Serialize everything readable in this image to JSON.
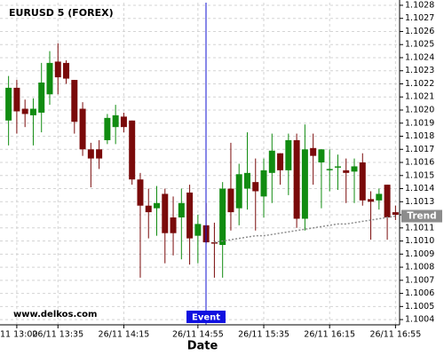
{
  "chart_data": {
    "type": "candlestick",
    "title": "EURUSD 5 (FOREX)",
    "x_label": "Date",
    "watermark": "www.delkos.com",
    "event_label": "Event",
    "categories": [
      null,
      "11 13:00",
      null,
      null,
      null,
      null,
      "26/11 13:35",
      null,
      null,
      null,
      null,
      null,
      null,
      null,
      "26/11 14:15",
      null,
      null,
      null,
      null,
      null,
      null,
      null,
      null,
      "26/11 14:55",
      null,
      null,
      null,
      null,
      null,
      null,
      null,
      "26/11 15:35",
      null,
      null,
      null,
      null,
      null,
      null,
      null,
      "26/11 16:15",
      null,
      null,
      null,
      null,
      null,
      null,
      null,
      "26/11 16:55"
    ],
    "open": [
      1.10192,
      1.10217,
      1.10201,
      1.10196,
      1.10198,
      1.10212,
      1.10237,
      1.10236,
      1.10223,
      1.10201,
      1.1017,
      1.1017,
      1.10177,
      1.10187,
      1.10195,
      1.10192,
      1.10147,
      1.10127,
      1.10125,
      1.10136,
      1.10118,
      1.10118,
      1.10137,
      1.10104,
      1.10112,
      1.10099,
      1.10097,
      1.1014,
      1.10125,
      1.1014,
      1.10145,
      1.10134,
      1.10152,
      1.10167,
      1.10154,
      1.10177,
      1.10117,
      1.10171,
      1.1016,
      1.10154,
      1.10156,
      1.10154,
      1.10153,
      1.1016,
      1.10132,
      1.10131,
      1.10143,
      1.10122
    ],
    "high": [
      1.10226,
      1.10223,
      1.10208,
      1.10209,
      1.10236,
      1.10245,
      1.10251,
      1.10238,
      1.10223,
      1.10206,
      1.10175,
      1.10177,
      1.10197,
      1.10204,
      1.10198,
      1.10192,
      1.10152,
      1.1014,
      1.10142,
      1.1014,
      1.10134,
      1.1014,
      1.10143,
      1.1012,
      1.10129,
      1.10114,
      1.10145,
      1.10175,
      1.10159,
      1.10183,
      1.10163,
      1.10163,
      1.10182,
      1.10167,
      1.10182,
      1.10182,
      1.10189,
      1.10182,
      1.1017,
      1.1017,
      1.10166,
      1.10163,
      1.10163,
      1.10167,
      1.10138,
      1.1014,
      1.10143,
      1.10127
    ],
    "low": [
      1.10173,
      1.10182,
      1.10187,
      1.10173,
      1.10183,
      1.10204,
      1.10212,
      1.1022,
      1.10182,
      1.10165,
      1.10141,
      1.10155,
      1.10174,
      1.10174,
      1.10183,
      1.10143,
      1.10072,
      1.10102,
      1.10104,
      1.10083,
      1.10089,
      1.10086,
      1.10082,
      1.10083,
      1.10098,
      1.10072,
      1.10072,
      1.10108,
      1.10112,
      1.10124,
      1.10108,
      1.10118,
      1.10129,
      1.10143,
      1.10135,
      1.1011,
      1.10108,
      1.10143,
      1.10125,
      1.10138,
      1.10139,
      1.10129,
      1.10129,
      1.10127,
      1.10101,
      1.10124,
      1.10101,
      1.10116
    ],
    "close": [
      1.10217,
      1.10199,
      1.10197,
      1.10201,
      1.10221,
      1.10236,
      1.10225,
      1.10224,
      1.10191,
      1.1017,
      1.10163,
      1.10163,
      1.10194,
      1.10196,
      1.10187,
      1.10147,
      1.10127,
      1.10122,
      1.10129,
      1.10106,
      1.10106,
      1.10129,
      1.10102,
      1.10113,
      1.10099,
      1.10098,
      1.1014,
      1.10122,
      1.10151,
      1.10152,
      1.10138,
      1.10154,
      1.10169,
      1.10154,
      1.10177,
      1.10117,
      1.1017,
      1.10165,
      1.1017,
      1.10155,
      1.10157,
      1.10152,
      1.10157,
      1.10131,
      1.1013,
      1.10136,
      1.10118,
      1.1012
    ],
    "up_color": "#118c11",
    "down_color": "#7a0a0a",
    "trend": {
      "name": "Trend",
      "color": "#8c8c8c",
      "values": [
        null,
        null,
        null,
        null,
        null,
        null,
        null,
        null,
        null,
        null,
        null,
        null,
        null,
        null,
        null,
        null,
        null,
        null,
        null,
        null,
        null,
        null,
        null,
        null,
        null,
        1.10099,
        1.101,
        1.10101,
        1.10102,
        1.10103,
        1.10104,
        1.10104,
        1.10105,
        1.10106,
        1.10107,
        1.10108,
        1.10109,
        1.1011,
        1.10111,
        1.10112,
        1.10113,
        1.10113,
        1.10114,
        1.10115,
        1.10116,
        1.10117,
        1.10118,
        1.10119
      ]
    },
    "ylim": [
      1.10036,
      1.10282
    ],
    "yticks": [
      1.1004,
      1.1005,
      1.1006,
      1.1007,
      1.1008,
      1.1009,
      {
        "value": 1.101,
        "label": "1.1010"
      },
      1.1011,
      1.1012,
      1.1013,
      1.1014,
      1.1015,
      1.1016,
      1.1017,
      1.1018,
      1.1019,
      {
        "value": 1.102,
        "label": "1.1020"
      },
      1.1021,
      1.1022,
      1.1023,
      1.1024,
      1.1025,
      1.1026,
      1.1027,
      1.1028
    ],
    "grid": true
  }
}
